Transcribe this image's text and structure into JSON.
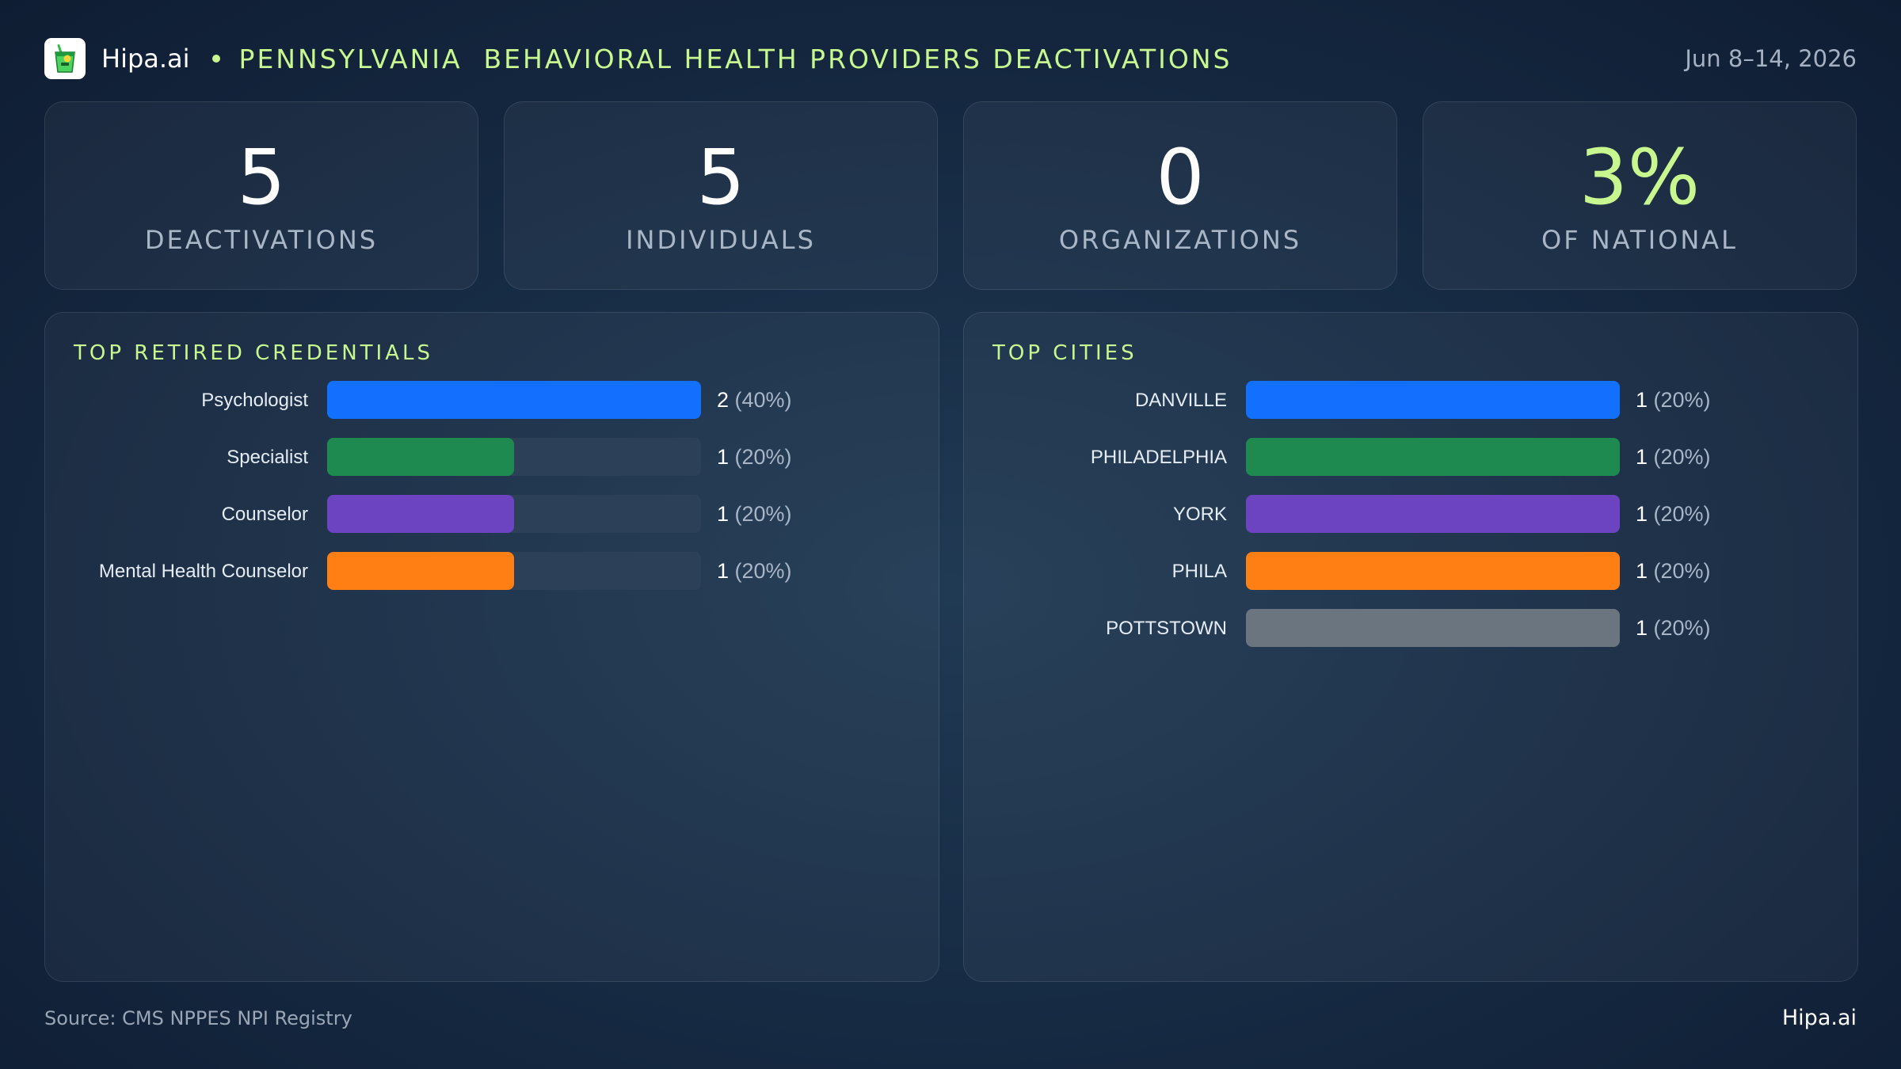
{
  "header": {
    "brand": "Hipa.ai",
    "title": "PENNSYLVANIA  BEHAVIORAL HEALTH PROVIDERS DEACTIVATIONS",
    "date": "Jun 8–14, 2026"
  },
  "stats": [
    {
      "value": "5",
      "label": "DEACTIVATIONS"
    },
    {
      "value": "5",
      "label": "INDIVIDUALS"
    },
    {
      "value": "0",
      "label": "ORGANIZATIONS"
    },
    {
      "value": "3%",
      "label": "OF NATIONAL"
    }
  ],
  "colors": {
    "accent": "#c9f78f",
    "track": "#2c4058",
    "bars": [
      "#1370ff",
      "#1f8a4f",
      "#6c44c2",
      "#ff7f14",
      "#6b7580"
    ]
  },
  "chart_data": [
    {
      "type": "bar",
      "orientation": "horizontal",
      "title": "TOP RETIRED CREDENTIALS",
      "categories": [
        "Psychologist",
        "Specialist",
        "Counselor",
        "Mental Health Counselor"
      ],
      "values": [
        2,
        1,
        1,
        1
      ],
      "percent_labels": [
        "(40%)",
        "(20%)",
        "(20%)",
        "(20%)"
      ],
      "xlim": [
        0,
        2
      ]
    },
    {
      "type": "bar",
      "orientation": "horizontal",
      "title": "TOP CITIES",
      "categories": [
        "DANVILLE",
        "PHILADELPHIA",
        "YORK",
        "PHILA",
        "POTTSTOWN"
      ],
      "values": [
        1,
        1,
        1,
        1,
        1
      ],
      "percent_labels": [
        "(20%)",
        "(20%)",
        "(20%)",
        "(20%)",
        "(20%)"
      ],
      "xlim": [
        0,
        1
      ]
    }
  ],
  "footer": {
    "source": "Source: CMS NPPES NPI Registry",
    "brand": "Hipa.ai"
  }
}
